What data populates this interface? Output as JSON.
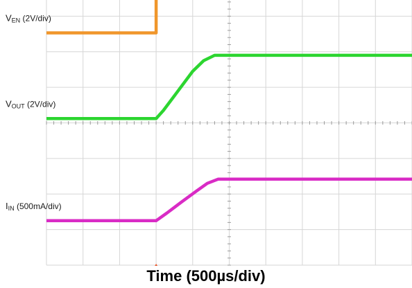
{
  "chart_data": {
    "type": "line",
    "xlabel": "Time (500µs/div)",
    "x_divisions": 10,
    "y_divisions": 8,
    "grid": true,
    "trigger_division": 3,
    "series": [
      {
        "name": "VEN (2V/div)",
        "label_main": "V",
        "label_sub": "EN",
        "label_scale": " (2V/div)",
        "color": "#f0962b",
        "x_div": [
          0,
          3.0,
          3.0,
          10
        ],
        "y_div": [
          6.53,
          6.53,
          7.55,
          7.55
        ]
      },
      {
        "name": "VOUT (2V/div)",
        "label_main": "V",
        "label_sub": "OUT",
        "label_scale": " (2V/div)",
        "color": "#2cd530",
        "x_div": [
          0,
          3.0,
          3.2,
          3.6,
          4.0,
          4.3,
          4.6,
          10
        ],
        "y_div": [
          4.12,
          4.12,
          4.35,
          4.9,
          5.45,
          5.75,
          5.9,
          5.9
        ]
      },
      {
        "name": "IIN (500mA/div)",
        "label_main": "I",
        "label_sub": "IN",
        "label_scale": " (500mA/div)",
        "color": "#d92bc5",
        "x_div": [
          0,
          3.0,
          3.3,
          3.7,
          4.1,
          4.4,
          4.7,
          10
        ],
        "y_div": [
          1.25,
          1.25,
          1.47,
          1.78,
          2.08,
          2.3,
          2.42,
          2.42
        ]
      }
    ]
  }
}
